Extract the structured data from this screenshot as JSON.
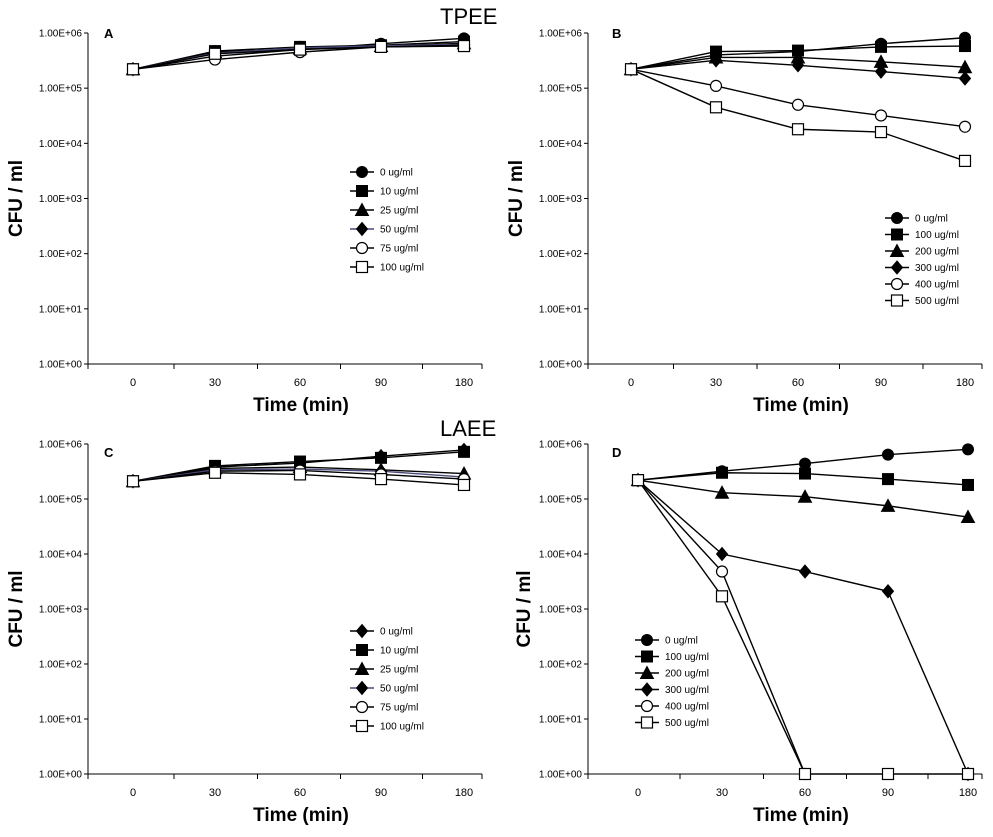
{
  "figure": {
    "group_titles": [
      "TPEE",
      "LAEE"
    ]
  },
  "chart_data": [
    {
      "type": "line",
      "panel": "A",
      "xlabel": "Time (min)",
      "ylabel": "CFU / ml",
      "y_scale": "log",
      "ylim": [
        1,
        1000000
      ],
      "y_tick_labels": [
        "1.00E+00",
        "1.00E+01",
        "1.00E+02",
        "1.00E+03",
        "1.00E+04",
        "1.00E+05",
        "1.00E+06"
      ],
      "categories": [
        "0",
        "30",
        "60",
        "90",
        "180"
      ],
      "legend_position": "center-right",
      "series": [
        {
          "name": "0 ug/ml",
          "marker": "circle",
          "values": [
            220000,
            380000,
            500000,
            640000,
            800000
          ]
        },
        {
          "name": "10 ug/ml",
          "marker": "square",
          "values": [
            220000,
            470000,
            560000,
            600000,
            700000
          ]
        },
        {
          "name": "25 ug/ml",
          "marker": "triangle",
          "values": [
            220000,
            450000,
            520000,
            580000,
            650000
          ]
        },
        {
          "name": "50 ug/ml",
          "marker": "diamond",
          "values": [
            220000,
            430000,
            540000,
            590000,
            620000
          ]
        },
        {
          "name": "75 ug/ml",
          "marker": "open-circle",
          "values": [
            220000,
            330000,
            450000,
            560000,
            600000
          ]
        },
        {
          "name": "100 ug/ml",
          "marker": "open-square",
          "values": [
            220000,
            420000,
            500000,
            560000,
            580000
          ]
        }
      ]
    },
    {
      "type": "line",
      "panel": "B",
      "xlabel": "Time (min)",
      "ylabel": "CFU / ml",
      "y_scale": "log",
      "ylim": [
        1,
        1000000
      ],
      "y_tick_labels": [
        "1.00E+00",
        "1.00E+01",
        "1.00E+02",
        "1.00E+03",
        "1.00E+04",
        "1.00E+05",
        "1.00E+06"
      ],
      "categories": [
        "0",
        "30",
        "60",
        "90",
        "180"
      ],
      "legend_position": "center-right",
      "series": [
        {
          "name": "0 ug/ml",
          "marker": "circle",
          "values": [
            220000,
            400000,
            460000,
            640000,
            820000
          ]
        },
        {
          "name": "100 ug/ml",
          "marker": "square",
          "values": [
            220000,
            460000,
            480000,
            560000,
            580000
          ]
        },
        {
          "name": "200 ug/ml",
          "marker": "triangle",
          "values": [
            220000,
            360000,
            360000,
            300000,
            240000
          ]
        },
        {
          "name": "300 ug/ml",
          "marker": "diamond",
          "values": [
            220000,
            320000,
            260000,
            200000,
            150000
          ]
        },
        {
          "name": "400 ug/ml",
          "marker": "open-circle",
          "values": [
            220000,
            110000,
            50000,
            32000,
            20000
          ]
        },
        {
          "name": "500 ug/ml",
          "marker": "open-square",
          "values": [
            220000,
            45000,
            18000,
            16000,
            4800
          ]
        }
      ]
    },
    {
      "type": "line",
      "panel": "C",
      "xlabel": "Time (min)",
      "ylabel": "CFU / ml",
      "y_scale": "log",
      "ylim": [
        1,
        1000000
      ],
      "y_tick_labels": [
        "1.00E+00",
        "1.00E+01",
        "1.00E+02",
        "1.00E+03",
        "1.00E+04",
        "1.00E+05",
        "1.00E+06"
      ],
      "categories": [
        "0",
        "30",
        "60",
        "90",
        "180"
      ],
      "legend_position": "center-right",
      "series": [
        {
          "name": "0 ug/ml",
          "marker": "diamond",
          "values": [
            210000,
            380000,
            450000,
            600000,
            780000
          ]
        },
        {
          "name": "10 ug/ml",
          "marker": "square",
          "values": [
            210000,
            400000,
            480000,
            560000,
            720000
          ]
        },
        {
          "name": "25 ug/ml",
          "marker": "triangle",
          "values": [
            210000,
            360000,
            380000,
            340000,
            290000
          ]
        },
        {
          "name": "50 ug/ml",
          "marker": "diamond",
          "values": [
            210000,
            340000,
            350000,
            320000,
            250000
          ]
        },
        {
          "name": "75 ug/ml",
          "marker": "open-circle",
          "values": [
            210000,
            320000,
            330000,
            280000,
            230000
          ]
        },
        {
          "name": "100 ug/ml",
          "marker": "open-square",
          "values": [
            210000,
            300000,
            280000,
            230000,
            180000
          ]
        }
      ]
    },
    {
      "type": "line",
      "panel": "D",
      "xlabel": "Time (min)",
      "ylabel": "CFU / ml",
      "y_scale": "log",
      "ylim": [
        1,
        1000000
      ],
      "y_tick_labels": [
        "1.00E+00",
        "1.00E+01",
        "1.00E+02",
        "1.00E+03",
        "1.00E+04",
        "1.00E+05",
        "1.00E+06"
      ],
      "categories": [
        "0",
        "30",
        "60",
        "90",
        "180"
      ],
      "legend_position": "bottom-left",
      "series": [
        {
          "name": "0 ug/ml",
          "marker": "circle",
          "values": [
            220000,
            320000,
            440000,
            640000,
            800000
          ]
        },
        {
          "name": "100 ug/ml",
          "marker": "square",
          "values": [
            220000,
            300000,
            290000,
            230000,
            180000
          ]
        },
        {
          "name": "200 ug/ml",
          "marker": "triangle",
          "values": [
            220000,
            130000,
            110000,
            75000,
            47000
          ]
        },
        {
          "name": "300 ug/ml",
          "marker": "diamond",
          "values": [
            220000,
            10000,
            4800,
            2100,
            1
          ]
        },
        {
          "name": "400 ug/ml",
          "marker": "open-circle",
          "values": [
            220000,
            4800,
            1,
            null,
            null
          ]
        },
        {
          "name": "500 ug/ml",
          "marker": "open-square",
          "values": [
            220000,
            1700,
            1,
            1,
            1
          ]
        }
      ]
    }
  ]
}
